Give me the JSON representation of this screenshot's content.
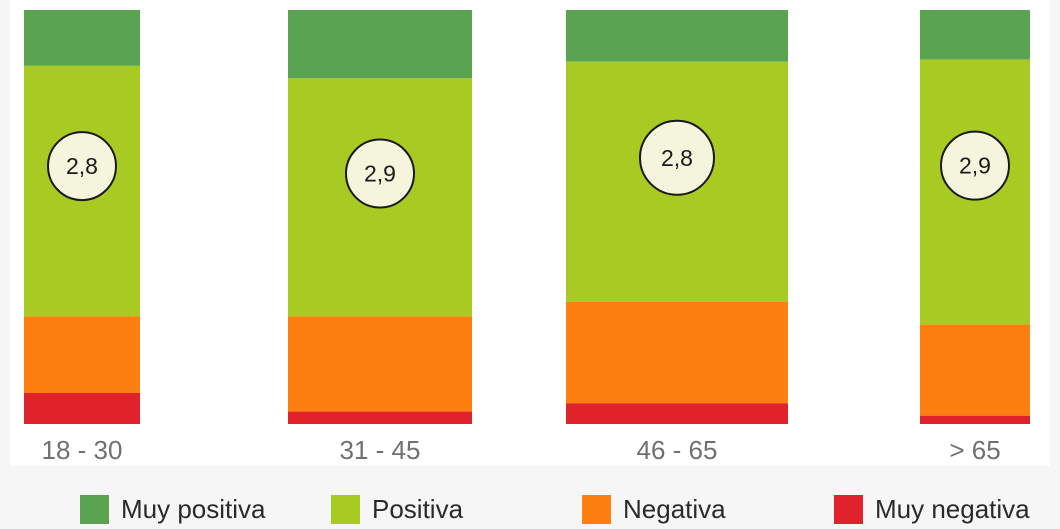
{
  "chart_data": {
    "type": "bar",
    "stacked": true,
    "normalized": true,
    "categories": [
      "18 - 30",
      "31 - 45",
      "46 - 65",
      "> 65"
    ],
    "series": [
      {
        "name": "Muy positiva",
        "color": "#5aa350",
        "values": [
          13.5,
          16.5,
          12.5,
          12.0
        ]
      },
      {
        "name": "Positiva",
        "color": "#a9c923",
        "values": [
          60.5,
          57.5,
          58.0,
          64.0
        ]
      },
      {
        "name": "Negativa",
        "color": "#fd7f0f",
        "values": [
          18.5,
          23.0,
          24.5,
          22.0
        ]
      },
      {
        "name": "Muy negativa",
        "color": "#e0222a",
        "values": [
          7.5,
          3.0,
          5.0,
          2.0
        ]
      }
    ],
    "scores": [
      "2,8",
      "2,9",
      "2,8",
      "2,9"
    ],
    "legend_position": "bottom",
    "grid": false
  }
}
